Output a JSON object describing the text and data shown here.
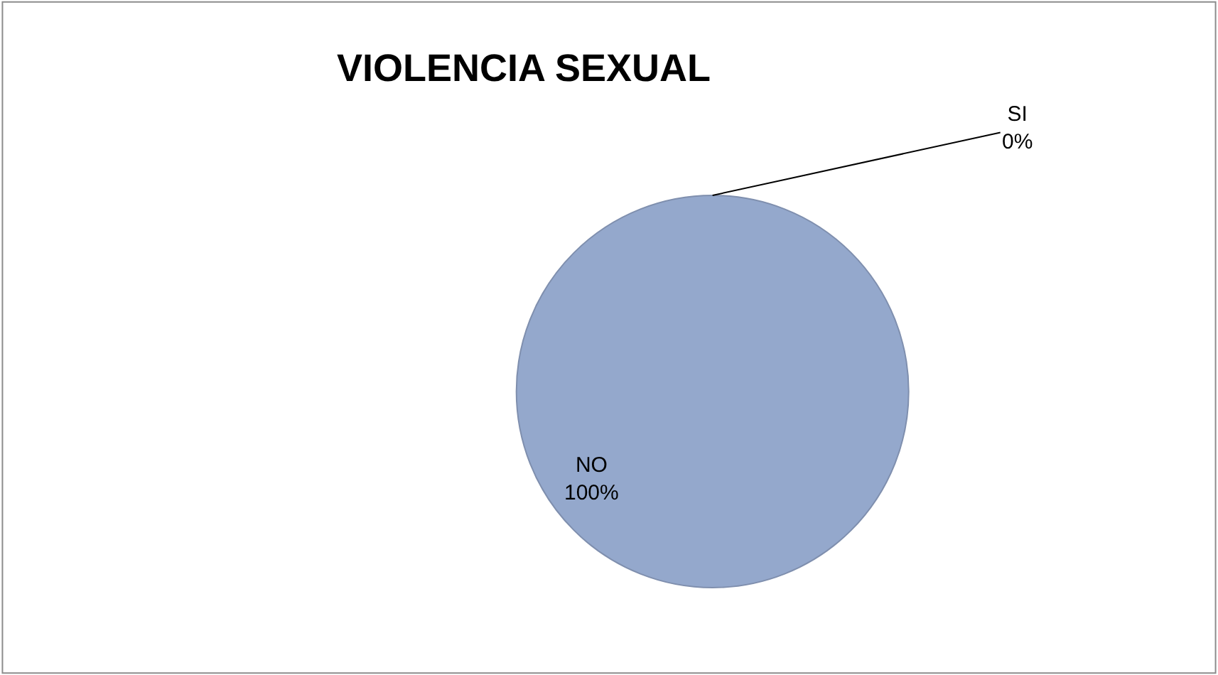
{
  "chart_data": {
    "type": "pie",
    "title": "VIOLENCIA SEXUAL",
    "categories": [
      "SI",
      "NO"
    ],
    "values": [
      0,
      100
    ],
    "value_labels": [
      "0%",
      "100%"
    ],
    "colors": [
      "#4f81bd",
      "#94a8cc"
    ],
    "legend": false
  }
}
